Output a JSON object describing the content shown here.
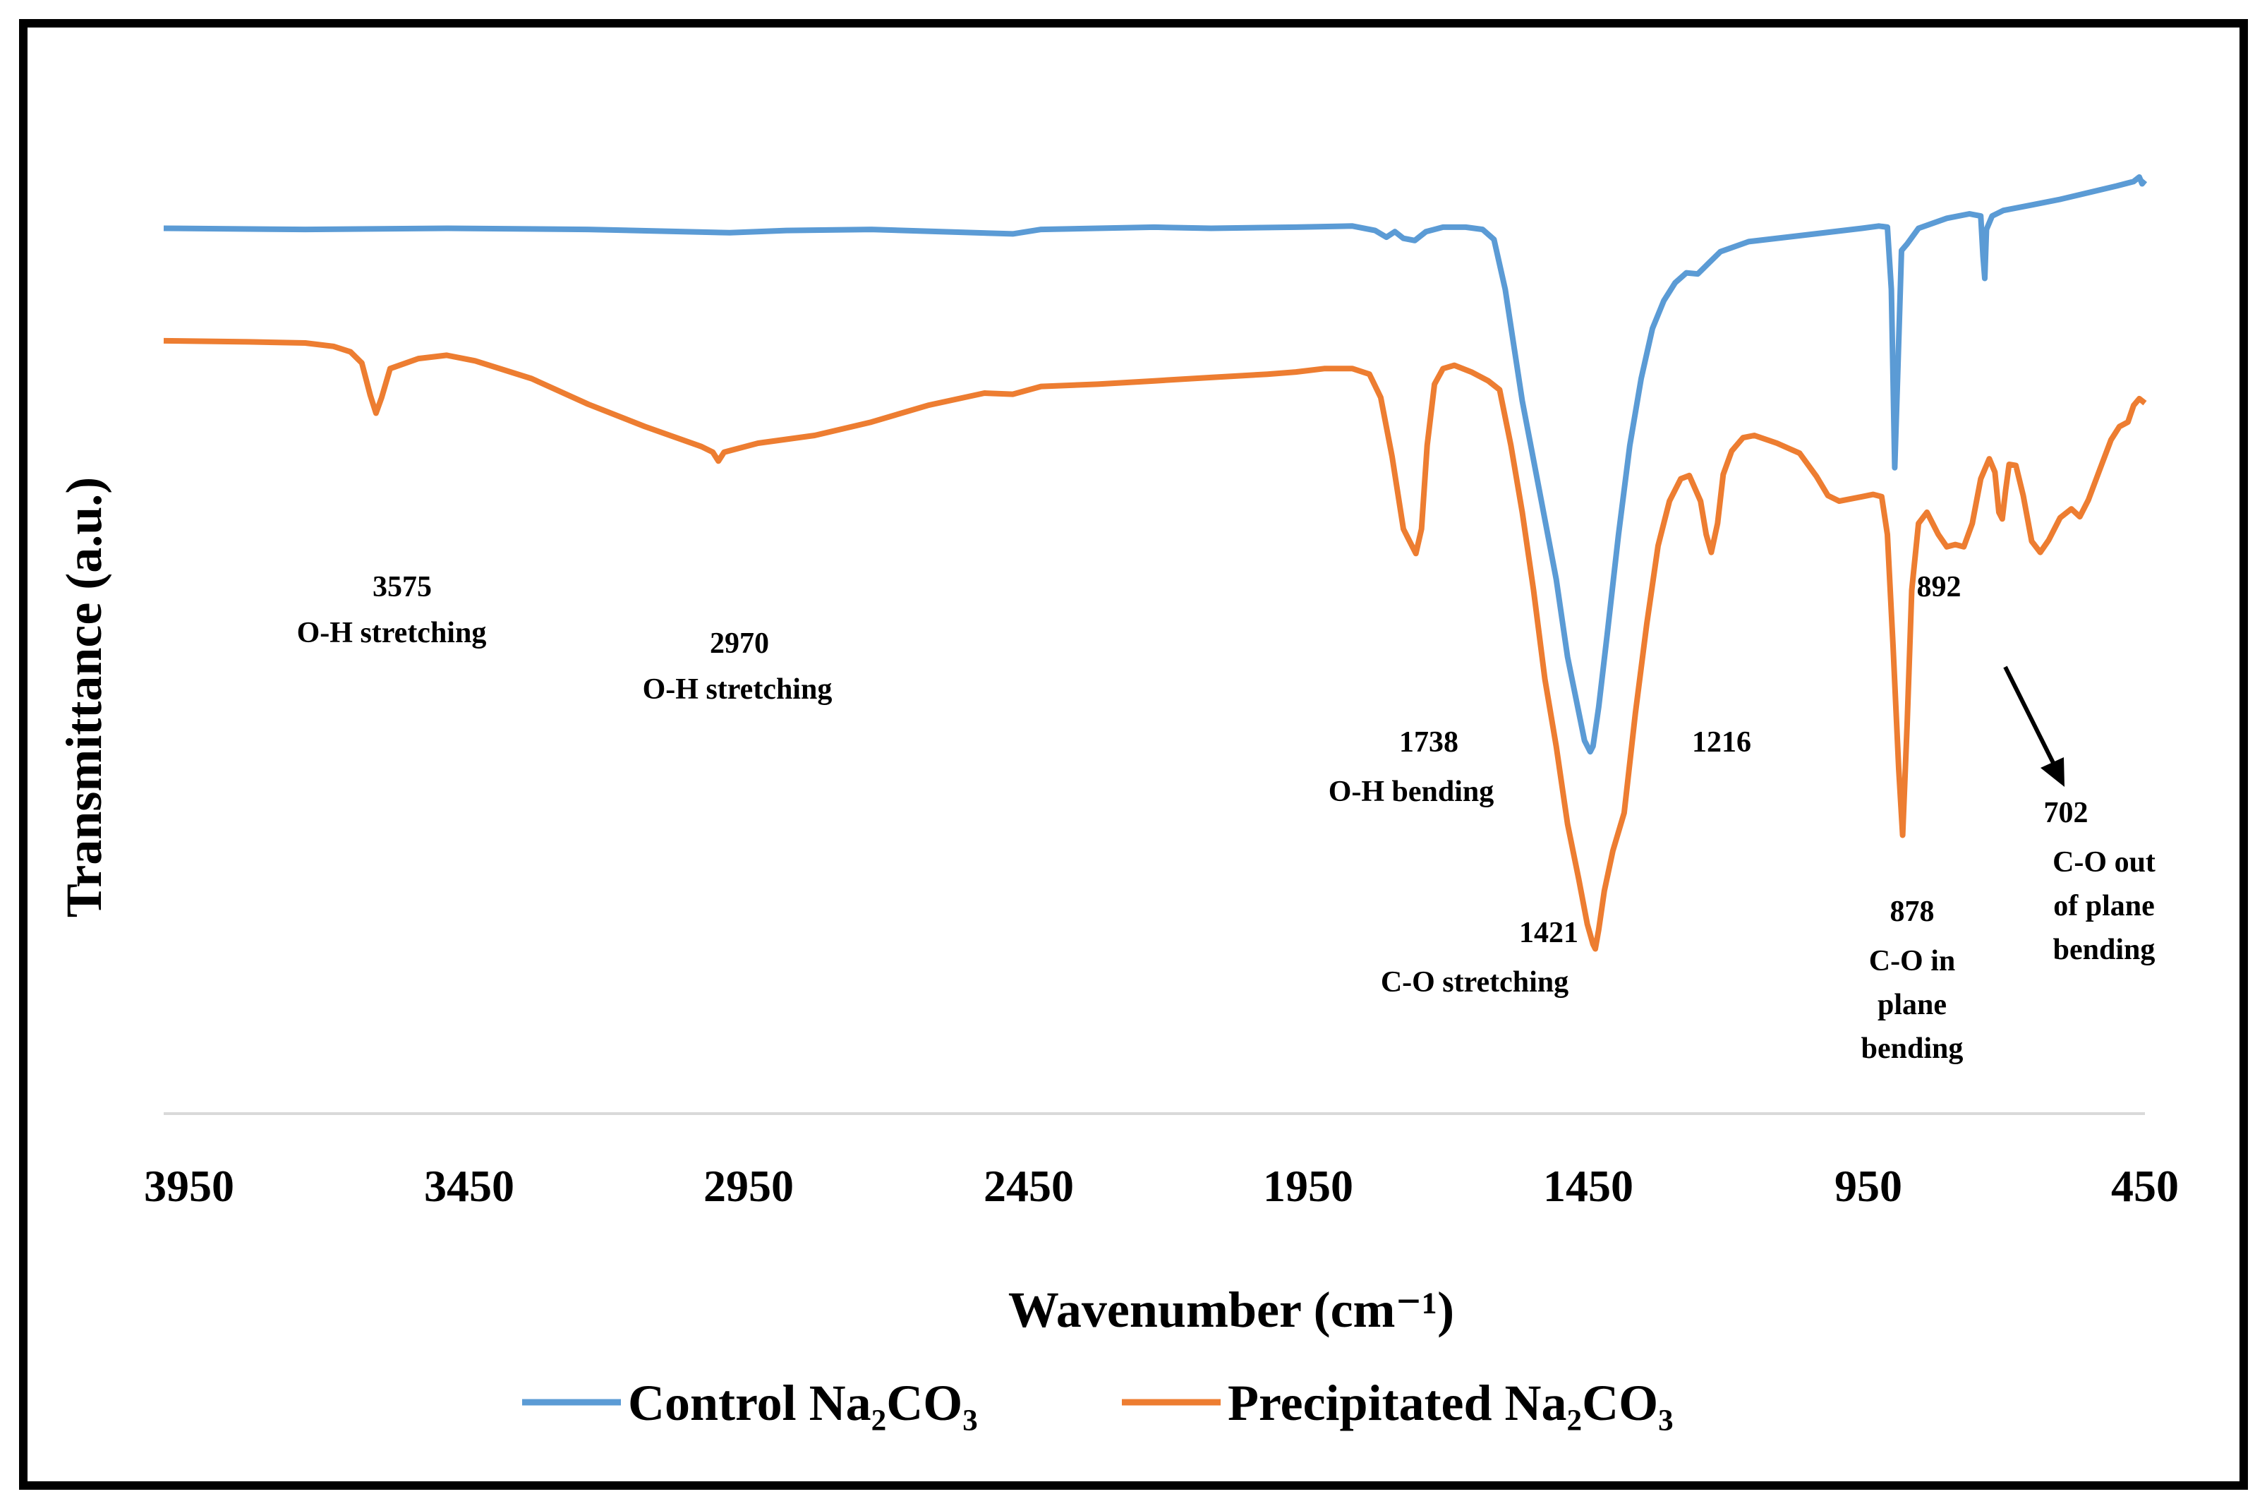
{
  "chart_data": {
    "type": "line",
    "title": "",
    "xlabel": "Wavenumber (cm⁻¹)",
    "ylabel": "Transmittance (a.u.)",
    "xlim": [
      3950,
      450
    ],
    "x_reversed": true,
    "ylim": [
      0,
      100
    ],
    "grid": false,
    "legend_position": "bottom",
    "x_ticks": [
      "3950",
      "3450",
      "2950",
      "2450",
      "1950",
      "1450",
      "950",
      "450"
    ],
    "series": [
      {
        "name": "Control Na₂CO₃",
        "color": "#5B9BD5",
        "points": [
          [
            3950,
            79.5
          ],
          [
            3700,
            79.4
          ],
          [
            3450,
            79.5
          ],
          [
            3200,
            79.4
          ],
          [
            2950,
            79.1
          ],
          [
            2850,
            79.3
          ],
          [
            2700,
            79.4
          ],
          [
            2450,
            79.0
          ],
          [
            2400,
            79.4
          ],
          [
            2200,
            79.6
          ],
          [
            2100,
            79.5
          ],
          [
            1950,
            79.6
          ],
          [
            1850,
            79.7
          ],
          [
            1810,
            79.3
          ],
          [
            1790,
            78.7
          ],
          [
            1775,
            79.2
          ],
          [
            1760,
            78.6
          ],
          [
            1740,
            78.4
          ],
          [
            1720,
            79.2
          ],
          [
            1690,
            79.6
          ],
          [
            1650,
            79.6
          ],
          [
            1620,
            79.4
          ],
          [
            1600,
            78.5
          ],
          [
            1580,
            74
          ],
          [
            1550,
            64
          ],
          [
            1520,
            56
          ],
          [
            1490,
            48
          ],
          [
            1470,
            41
          ],
          [
            1450,
            36
          ],
          [
            1440,
            33.5
          ],
          [
            1430,
            32.5
          ],
          [
            1425,
            33
          ],
          [
            1415,
            36.5
          ],
          [
            1400,
            43
          ],
          [
            1380,
            52
          ],
          [
            1360,
            60
          ],
          [
            1340,
            66
          ],
          [
            1320,
            70.5
          ],
          [
            1300,
            73
          ],
          [
            1280,
            74.6
          ],
          [
            1260,
            75.5
          ],
          [
            1240,
            75.4
          ],
          [
            1220,
            76.4
          ],
          [
            1200,
            77.4
          ],
          [
            1150,
            78.3
          ],
          [
            1050,
            78.9
          ],
          [
            950,
            79.5
          ],
          [
            920,
            79.7
          ],
          [
            905,
            79.6
          ],
          [
            898,
            74
          ],
          [
            892,
            58
          ],
          [
            887,
            66
          ],
          [
            880,
            77.5
          ],
          [
            870,
            78.1
          ],
          [
            850,
            79.5
          ],
          [
            800,
            80.4
          ],
          [
            760,
            80.8
          ],
          [
            740,
            80.6
          ],
          [
            736,
            77
          ],
          [
            733,
            75
          ],
          [
            730,
            79.4
          ],
          [
            720,
            80.6
          ],
          [
            700,
            81.1
          ],
          [
            650,
            81.6
          ],
          [
            600,
            82.1
          ],
          [
            550,
            82.7
          ],
          [
            500,
            83.3
          ],
          [
            470,
            83.7
          ],
          [
            460,
            84.1
          ],
          [
            455,
            83.5
          ],
          [
            450,
            83.8
          ]
        ]
      },
      {
        "name": "Precipitated Na₂CO₃",
        "color": "#ED7D31",
        "points": [
          [
            3950,
            69.4
          ],
          [
            3800,
            69.3
          ],
          [
            3700,
            69.2
          ],
          [
            3650,
            68.9
          ],
          [
            3620,
            68.4
          ],
          [
            3600,
            67.4
          ],
          [
            3585,
            64.5
          ],
          [
            3575,
            62.9
          ],
          [
            3565,
            64.3
          ],
          [
            3550,
            66.9
          ],
          [
            3500,
            67.8
          ],
          [
            3450,
            68.1
          ],
          [
            3400,
            67.6
          ],
          [
            3300,
            66
          ],
          [
            3200,
            63.7
          ],
          [
            3100,
            61.7
          ],
          [
            3000,
            59.9
          ],
          [
            2980,
            59.4
          ],
          [
            2970,
            58.6
          ],
          [
            2960,
            59.4
          ],
          [
            2900,
            60.2
          ],
          [
            2800,
            60.9
          ],
          [
            2700,
            62.1
          ],
          [
            2600,
            63.6
          ],
          [
            2500,
            64.7
          ],
          [
            2450,
            64.6
          ],
          [
            2400,
            65.3
          ],
          [
            2300,
            65.5
          ],
          [
            2200,
            65.8
          ],
          [
            2100,
            66.1
          ],
          [
            2000,
            66.4
          ],
          [
            1950,
            66.6
          ],
          [
            1900,
            66.9
          ],
          [
            1850,
            66.9
          ],
          [
            1820,
            66.4
          ],
          [
            1800,
            64.3
          ],
          [
            1780,
            59
          ],
          [
            1760,
            52.5
          ],
          [
            1745,
            51
          ],
          [
            1738,
            50.3
          ],
          [
            1728,
            52.5
          ],
          [
            1718,
            60
          ],
          [
            1705,
            65.5
          ],
          [
            1690,
            66.9
          ],
          [
            1670,
            67.2
          ],
          [
            1640,
            66.6
          ],
          [
            1610,
            65.8
          ],
          [
            1590,
            65
          ],
          [
            1570,
            60
          ],
          [
            1550,
            54
          ],
          [
            1530,
            47
          ],
          [
            1510,
            39
          ],
          [
            1490,
            33
          ],
          [
            1470,
            26
          ],
          [
            1450,
            21
          ],
          [
            1435,
            17
          ],
          [
            1425,
            15.2
          ],
          [
            1421,
            14.8
          ],
          [
            1415,
            16.5
          ],
          [
            1405,
            20
          ],
          [
            1390,
            23.6
          ],
          [
            1370,
            27
          ],
          [
            1350,
            36
          ],
          [
            1330,
            44
          ],
          [
            1310,
            51
          ],
          [
            1290,
            55
          ],
          [
            1270,
            57
          ],
          [
            1255,
            57.3
          ],
          [
            1235,
            55
          ],
          [
            1225,
            52
          ],
          [
            1216,
            50.4
          ],
          [
            1205,
            53
          ],
          [
            1195,
            57.4
          ],
          [
            1180,
            59.5
          ],
          [
            1160,
            60.7
          ],
          [
            1140,
            60.9
          ],
          [
            1100,
            60.2
          ],
          [
            1060,
            59.3
          ],
          [
            1030,
            57.2
          ],
          [
            1010,
            55.5
          ],
          [
            990,
            55
          ],
          [
            950,
            55.4
          ],
          [
            930,
            55.6
          ],
          [
            915,
            55.4
          ],
          [
            905,
            52
          ],
          [
            895,
            42
          ],
          [
            885,
            31
          ],
          [
            878,
            25
          ],
          [
            870,
            35
          ],
          [
            862,
            47
          ],
          [
            850,
            53
          ],
          [
            835,
            54
          ],
          [
            815,
            52
          ],
          [
            800,
            50.9
          ],
          [
            785,
            51.1
          ],
          [
            770,
            50.9
          ],
          [
            755,
            53
          ],
          [
            740,
            57
          ],
          [
            725,
            58.8
          ],
          [
            715,
            57.6
          ],
          [
            708,
            54
          ],
          [
            702,
            53.4
          ],
          [
            696,
            56
          ],
          [
            690,
            58.3
          ],
          [
            678,
            58.2
          ],
          [
            665,
            55.5
          ],
          [
            650,
            51.4
          ],
          [
            635,
            50.4
          ],
          [
            620,
            51.5
          ],
          [
            600,
            53.5
          ],
          [
            580,
            54.3
          ],
          [
            565,
            53.6
          ],
          [
            550,
            55.1
          ],
          [
            530,
            57.8
          ],
          [
            510,
            60.5
          ],
          [
            495,
            61.7
          ],
          [
            480,
            62.1
          ],
          [
            470,
            63.6
          ],
          [
            460,
            64.2
          ],
          [
            450,
            63.8
          ]
        ]
      }
    ],
    "annotations": [
      {
        "peak": "3575",
        "label": "O-H stretching"
      },
      {
        "peak": "2970",
        "label": "O-H stretching"
      },
      {
        "peak": "1738",
        "label": "O-H bending"
      },
      {
        "peak": "1421",
        "label": "C-O stretching"
      },
      {
        "peak": "1216",
        "label": ""
      },
      {
        "peak": "892",
        "label": ""
      },
      {
        "peak": "878",
        "label_lines": [
          "C-O in",
          "plane",
          "bending"
        ]
      },
      {
        "peak": "702",
        "label_lines": [
          "C-O out",
          "of plane",
          "bending"
        ]
      }
    ]
  }
}
